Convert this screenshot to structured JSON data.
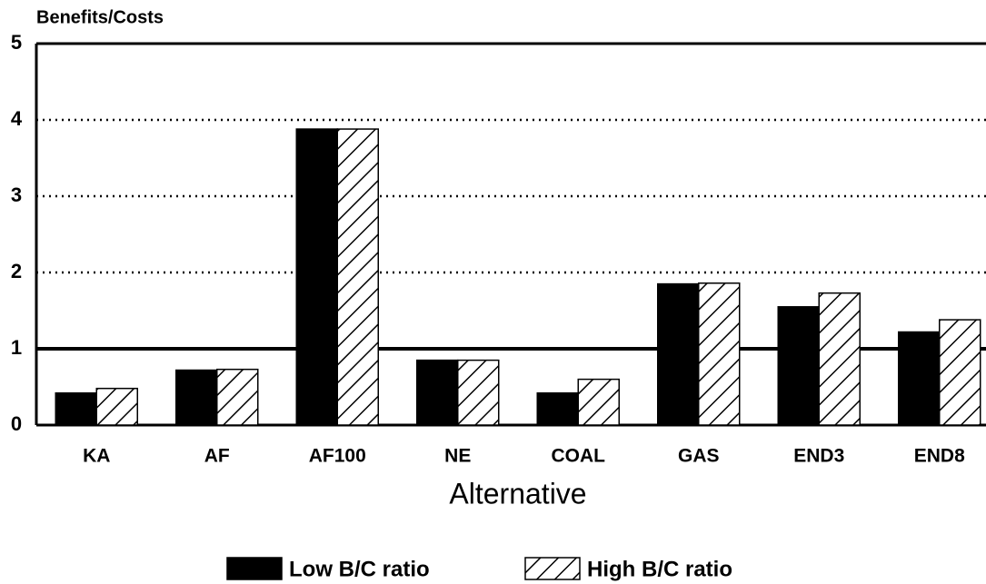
{
  "chart_data": {
    "type": "bar",
    "y_axis_label": "Benefits/Costs",
    "x_axis_label": "Alternative",
    "categories": [
      "KA",
      "AF",
      "AF100",
      "NE",
      "COAL",
      "GAS",
      "END3",
      "END8"
    ],
    "series": [
      {
        "name": "Low B/C ratio",
        "color": "#000000",
        "fill": "solid",
        "values": [
          0.42,
          0.72,
          3.88,
          0.85,
          0.42,
          1.85,
          1.55,
          1.22
        ]
      },
      {
        "name": "High B/C ratio",
        "color": "#000000",
        "fill": "hatch",
        "values": [
          0.48,
          0.73,
          3.88,
          0.85,
          0.6,
          1.86,
          1.73,
          1.38
        ]
      }
    ],
    "ylim": [
      0,
      5
    ],
    "yticks": [
      0,
      1,
      2,
      3,
      4,
      5
    ],
    "grid": true,
    "reference_line": 1,
    "legend": "bottom"
  }
}
